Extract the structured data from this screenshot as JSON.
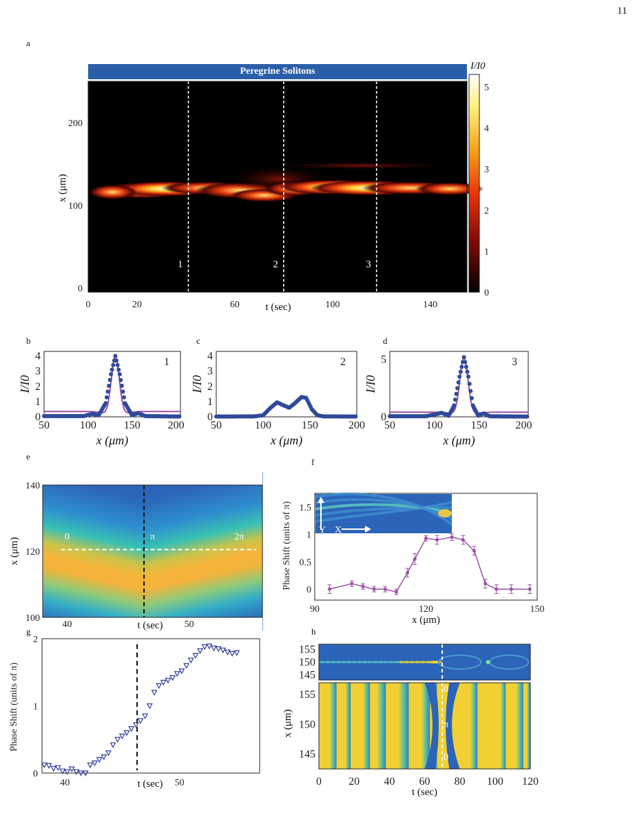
{
  "page_number": "11",
  "panel_labels": {
    "a": "a",
    "b": "b",
    "c": "c",
    "d": "d",
    "e": "e",
    "f": "f",
    "g": "g",
    "h": "h"
  },
  "chart_data": [
    {
      "id": "a",
      "type": "heatmap",
      "title": "Peregrine Solitons",
      "xlabel": "t (sec)",
      "ylabel": "x (μm)",
      "xlim": [
        0,
        155
      ],
      "ylim": [
        -5,
        250
      ],
      "xticks": [
        0,
        20,
        60,
        100,
        140
      ],
      "yticks": [
        0,
        100,
        200
      ],
      "colorbar": {
        "label": "I/I0",
        "range": [
          0,
          5.3
        ],
        "ticks": [
          0,
          1,
          2,
          3,
          4,
          5
        ]
      },
      "markers": [
        {
          "t": 41,
          "label": "1"
        },
        {
          "t": 80,
          "label": "2"
        },
        {
          "t": 118,
          "label": "3"
        }
      ],
      "colors": {
        "bg": "#000000",
        "banner": "#2a5ea8",
        "marker": "#ffffff"
      }
    },
    {
      "id": "b",
      "type": "line",
      "panel_note": "1",
      "xlabel": "x (μm)",
      "ylabel": "I/I0",
      "xlim": [
        50,
        205
      ],
      "ylim": [
        0,
        4.3
      ],
      "xticks": [
        50,
        100,
        150,
        200
      ],
      "yticks": [
        0,
        1,
        2,
        3,
        4
      ],
      "series": [
        {
          "values": [
            [
              50,
              0.05
            ],
            [
              95,
              0.05
            ],
            [
              105,
              0.2
            ],
            [
              112,
              0.1
            ],
            [
              120,
              0.9
            ],
            [
              126,
              2.8
            ],
            [
              131,
              4.0
            ],
            [
              136,
              2.8
            ],
            [
              142,
              0.9
            ],
            [
              150,
              0.1
            ],
            [
              157,
              0.25
            ],
            [
              165,
              0.05
            ],
            [
              205,
              0.02
            ]
          ]
        },
        {
          "fit": "peregrine",
          "peak": 4.0,
          "center": 131,
          "floor": 0.35
        }
      ],
      "colors": {
        "data": "#2f4a99",
        "fit": "#9c4fa7"
      }
    },
    {
      "id": "c",
      "type": "line",
      "panel_note": "2",
      "xlabel": "x (μm)",
      "ylabel": "I/I0",
      "xlim": [
        50,
        200
      ],
      "ylim": [
        0,
        4.3
      ],
      "xticks": [
        50,
        100,
        150,
        200
      ],
      "yticks": [
        0,
        1,
        2,
        3,
        4
      ],
      "series": [
        {
          "values": [
            [
              50,
              0.02
            ],
            [
              90,
              0.03
            ],
            [
              100,
              0.1
            ],
            [
              108,
              0.6
            ],
            [
              115,
              0.95
            ],
            [
              122,
              0.75
            ],
            [
              128,
              0.6
            ],
            [
              134,
              0.9
            ],
            [
              141,
              1.3
            ],
            [
              146,
              1.25
            ],
            [
              152,
              0.5
            ],
            [
              158,
              0.1
            ],
            [
              165,
              0.03
            ],
            [
              200,
              0.02
            ]
          ]
        }
      ],
      "colors": {
        "data": "#2f4a99"
      }
    },
    {
      "id": "d",
      "type": "line",
      "panel_note": "3",
      "xlabel": "x (μm)",
      "ylabel": "I/I0",
      "xlim": [
        50,
        205
      ],
      "ylim": [
        0,
        5.7
      ],
      "xticks": [
        50,
        100,
        150,
        200
      ],
      "yticks": [
        0,
        5
      ],
      "series": [
        {
          "values": [
            [
              50,
              0.05
            ],
            [
              90,
              0.05
            ],
            [
              100,
              0.2
            ],
            [
              108,
              0.35
            ],
            [
              116,
              0.1
            ],
            [
              122,
              1.0
            ],
            [
              128,
              3.5
            ],
            [
              133,
              5.2
            ],
            [
              138,
              3.5
            ],
            [
              143,
              1.0
            ],
            [
              149,
              0.1
            ],
            [
              155,
              0.3
            ],
            [
              162,
              0.05
            ],
            [
              205,
              0.02
            ]
          ]
        },
        {
          "fit": "peregrine",
          "peak": 5.2,
          "center": 133,
          "floor": 0.4
        }
      ],
      "colors": {
        "data": "#2f4a99",
        "fit": "#9c4fa7"
      }
    },
    {
      "id": "e",
      "type": "heatmap",
      "xlabel": "t (sec)",
      "ylabel": "x (μm)",
      "xlim": [
        38,
        56
      ],
      "ylim": [
        100,
        140
      ],
      "xticks": [
        40,
        50
      ],
      "yticks": [
        100,
        120,
        140
      ],
      "annotations": [
        "0",
        "π",
        "2π"
      ],
      "colors": {
        "bg": "#2b64b8",
        "band": "#f5b53a",
        "mid": "#36c0b3"
      }
    },
    {
      "id": "f",
      "type": "line",
      "xlabel": "x (μm)",
      "ylabel": "Phase Shift (units of π)",
      "xlim": [
        90,
        150
      ],
      "ylim": [
        -0.2,
        1.75
      ],
      "xticks": [
        90,
        120,
        150
      ],
      "yticks": [
        0,
        0.5,
        1,
        1.5
      ],
      "inset_labels": [
        "Y",
        "X"
      ],
      "series": [
        {
          "x": [
            94,
            100,
            103,
            106,
            109,
            112,
            115,
            117,
            120,
            123,
            127,
            130,
            133,
            136,
            139,
            143,
            148
          ],
          "y": [
            0,
            0.1,
            0.05,
            0,
            0,
            -0.05,
            0.3,
            0.55,
            0.93,
            0.9,
            0.95,
            0.9,
            0.7,
            0.1,
            0,
            0,
            0
          ],
          "err": [
            0.08,
            0.05,
            0.05,
            0.05,
            0.05,
            0.05,
            0.08,
            0.1,
            0.05,
            0.08,
            0.06,
            0.08,
            0.08,
            0.08,
            0.08,
            0.08,
            0.08
          ]
        }
      ],
      "colors": {
        "line": "#9c4fa7"
      }
    },
    {
      "id": "g",
      "type": "scatter",
      "xlabel": "t (sec)",
      "ylabel": "Phase Shift (units of π)",
      "xlim": [
        38,
        57
      ],
      "ylim": [
        0,
        2
      ],
      "xticks": [
        40,
        50
      ],
      "yticks": [
        0,
        1,
        2
      ],
      "series": [
        {
          "x": [
            38.2,
            38.6,
            39.0,
            39.4,
            39.8,
            40.2,
            40.6,
            41.0,
            41.4,
            41.8,
            42.2,
            42.6,
            43.0,
            43.4,
            43.8,
            44.2,
            44.6,
            45.0,
            45.4,
            45.8,
            46.2,
            46.6,
            47.0,
            47.4,
            47.8,
            48.2,
            48.6,
            49.0,
            49.4,
            49.8,
            50.2,
            50.6,
            51.0,
            51.4,
            51.8,
            52.2,
            52.6,
            53.0,
            53.4,
            53.8,
            54.2,
            54.6,
            55.0
          ],
          "y": [
            0.12,
            0.11,
            0.07,
            0.08,
            0.03,
            0.02,
            0.06,
            0.02,
            0.0,
            0.0,
            0.12,
            0.15,
            0.2,
            0.24,
            0.3,
            0.42,
            0.5,
            0.55,
            0.6,
            0.66,
            0.72,
            0.78,
            0.85,
            1.0,
            1.2,
            1.3,
            1.35,
            1.38,
            1.42,
            1.48,
            1.52,
            1.6,
            1.68,
            1.75,
            1.82,
            1.88,
            1.89,
            1.86,
            1.85,
            1.83,
            1.8,
            1.78,
            1.79
          ]
        }
      ],
      "vline": 46.3,
      "colors": {
        "marker": "#2c3f95"
      }
    },
    {
      "id": "h",
      "type": "heatmap",
      "xlabel": "t (sec)",
      "ylabel": "x (μm)",
      "xlim": [
        0,
        120
      ],
      "xticks": [
        0,
        20,
        40,
        60,
        80,
        100,
        120
      ],
      "top_yticks": [
        145,
        150,
        155
      ],
      "bottom_yticks": [
        145,
        150,
        155
      ],
      "annotations": [
        "0",
        "π",
        "0"
      ],
      "vline": 70,
      "colors": {
        "bg": "#2b64b8",
        "yellow": "#f2d033",
        "green": "#3cc0a0"
      }
    }
  ]
}
